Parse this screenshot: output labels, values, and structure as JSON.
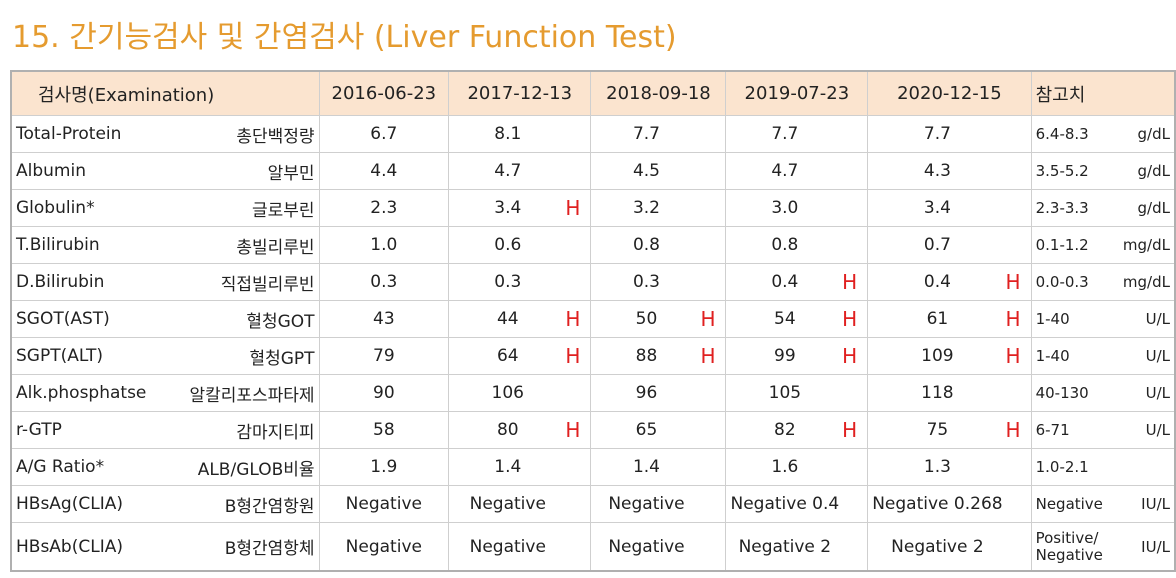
{
  "title": "15. 간기능검사 및 간염검사 (Liver Function Test)",
  "table": {
    "columns": [
      "검사명(Examination)",
      "2016-06-23",
      "2017-12-13",
      "2018-09-18",
      "2019-07-23",
      "2020-12-15",
      "참고치"
    ],
    "rows": [
      {
        "name": "Total-Protein",
        "name_ko": "총단백정량",
        "results": [
          {
            "value": "6.7"
          },
          {
            "value": "8.1"
          },
          {
            "value": "7.7"
          },
          {
            "value": "7.7"
          },
          {
            "value": "7.7"
          }
        ],
        "reference": "6.4-8.3",
        "unit": "g/dL"
      },
      {
        "name": "Albumin",
        "name_ko": "알부민",
        "results": [
          {
            "value": "4.4"
          },
          {
            "value": "4.7"
          },
          {
            "value": "4.5"
          },
          {
            "value": "4.7"
          },
          {
            "value": "4.3"
          }
        ],
        "reference": "3.5-5.2",
        "unit": "g/dL"
      },
      {
        "name": "Globulin*",
        "name_ko": "글로부린",
        "results": [
          {
            "value": "2.3"
          },
          {
            "value": "3.4",
            "flag": "H"
          },
          {
            "value": "3.2"
          },
          {
            "value": "3.0"
          },
          {
            "value": "3.4"
          }
        ],
        "reference": "2.3-3.3",
        "unit": "g/dL"
      },
      {
        "name": "T.Bilirubin",
        "name_ko": "총빌리루빈",
        "results": [
          {
            "value": "1.0"
          },
          {
            "value": "0.6"
          },
          {
            "value": "0.8"
          },
          {
            "value": "0.8"
          },
          {
            "value": "0.7"
          }
        ],
        "reference": "0.1-1.2",
        "unit": "mg/dL"
      },
      {
        "name": "D.Bilirubin",
        "name_ko": "직접빌리루빈",
        "results": [
          {
            "value": "0.3"
          },
          {
            "value": "0.3"
          },
          {
            "value": "0.3"
          },
          {
            "value": "0.4",
            "flag": "H"
          },
          {
            "value": "0.4",
            "flag": "H"
          }
        ],
        "reference": "0.0-0.3",
        "unit": "mg/dL"
      },
      {
        "name": "SGOT(AST)",
        "name_ko": "혈청GOT",
        "results": [
          {
            "value": "43"
          },
          {
            "value": "44",
            "flag": "H"
          },
          {
            "value": "50",
            "flag": "H"
          },
          {
            "value": "54",
            "flag": "H"
          },
          {
            "value": "61",
            "flag": "H"
          }
        ],
        "reference": "1-40",
        "unit": "U/L"
      },
      {
        "name": "SGPT(ALT)",
        "name_ko": "혈청GPT",
        "results": [
          {
            "value": "79"
          },
          {
            "value": "64",
            "flag": "H"
          },
          {
            "value": "88",
            "flag": "H"
          },
          {
            "value": "99",
            "flag": "H"
          },
          {
            "value": "109",
            "flag": "H"
          }
        ],
        "reference": "1-40",
        "unit": "U/L"
      },
      {
        "name": "Alk.phosphatse",
        "name_ko": "알칼리포스파타제",
        "results": [
          {
            "value": "90"
          },
          {
            "value": "106"
          },
          {
            "value": "96"
          },
          {
            "value": "105"
          },
          {
            "value": "118"
          }
        ],
        "reference": "40-130",
        "unit": "U/L"
      },
      {
        "name": "r-GTP",
        "name_ko": "감마지티피",
        "results": [
          {
            "value": "58"
          },
          {
            "value": "80",
            "flag": "H"
          },
          {
            "value": "65"
          },
          {
            "value": "82",
            "flag": "H"
          },
          {
            "value": "75",
            "flag": "H"
          }
        ],
        "reference": "6-71",
        "unit": "U/L"
      },
      {
        "name": "A/G Ratio*",
        "name_ko": "ALB/GLOB비율",
        "results": [
          {
            "value": "1.9"
          },
          {
            "value": "1.4"
          },
          {
            "value": "1.4"
          },
          {
            "value": "1.6"
          },
          {
            "value": "1.3"
          }
        ],
        "reference": "1.0-2.1"
      },
      {
        "name": "HBsAg(CLIA)",
        "name_ko": "B형간염항원",
        "results": [
          {
            "value": "Negative"
          },
          {
            "value": "Negative"
          },
          {
            "value": "Negative"
          },
          {
            "value": "Negative 0.4"
          },
          {
            "value": "Negative 0.268"
          }
        ],
        "reference": "Negative",
        "unit": "IU/L"
      },
      {
        "name": "HBsAb(CLIA)",
        "name_ko": "B형간염항체",
        "results": [
          {
            "value": "Negative"
          },
          {
            "value": "Negative"
          },
          {
            "value": "Negative"
          },
          {
            "value": "Negative 2"
          },
          {
            "value": "Negative 2"
          }
        ],
        "reference": [
          "Positive/",
          "Negative"
        ],
        "unit": "IU/L"
      }
    ]
  }
}
